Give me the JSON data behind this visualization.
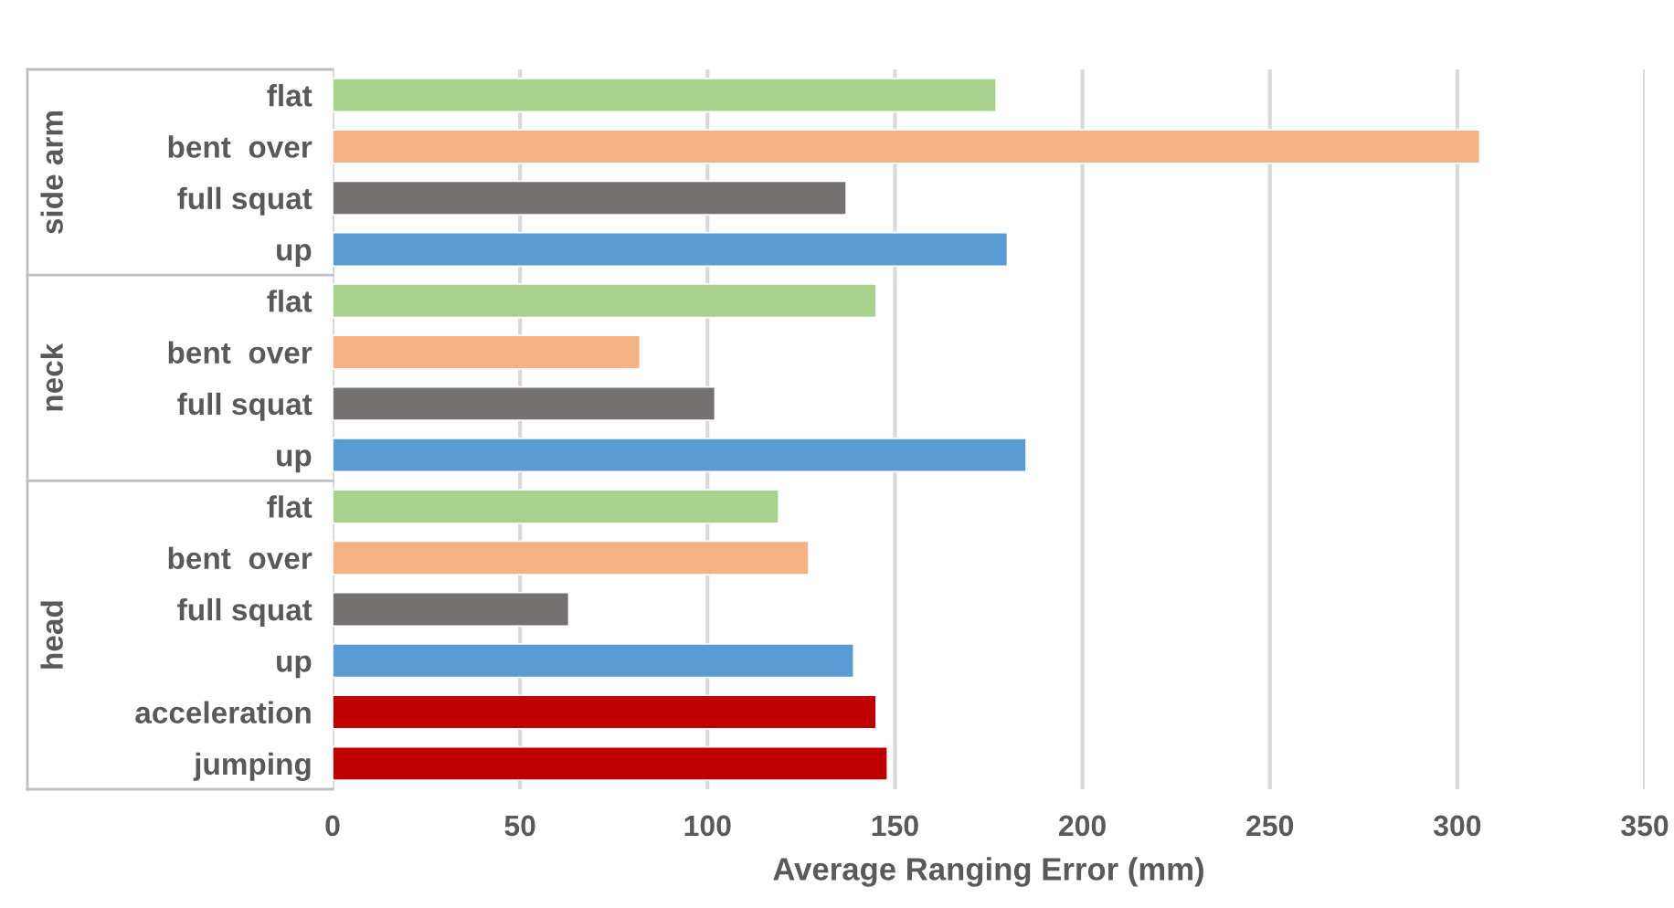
{
  "chart_data": {
    "type": "bar",
    "orientation": "horizontal",
    "categories": [
      "flat",
      "bent  over",
      "full squat",
      "up",
      "flat",
      "bent  over",
      "full squat",
      "up",
      "flat",
      "bent  over",
      "full squat",
      "up",
      "acceleration",
      "jumping"
    ],
    "values": [
      177,
      306,
      137,
      180,
      145,
      82,
      102,
      185,
      119,
      127,
      63,
      139,
      145,
      148
    ],
    "colors": [
      "#a9d18e",
      "#f4b183",
      "#767171",
      "#5b9bd5",
      "#a9d18e",
      "#f4b183",
      "#767171",
      "#5b9bd5",
      "#a9d18e",
      "#f4b183",
      "#767171",
      "#5b9bd5",
      "#c00000",
      "#c00000"
    ],
    "annotations": [
      "side arm",
      "neck",
      "head"
    ],
    "xlabel": "Average Ranging Error (mm)",
    "xlim": [
      0,
      350
    ],
    "xticks": [
      0,
      50,
      100,
      150,
      200,
      250,
      300,
      350
    ],
    "grid": "x",
    "legend": false
  }
}
